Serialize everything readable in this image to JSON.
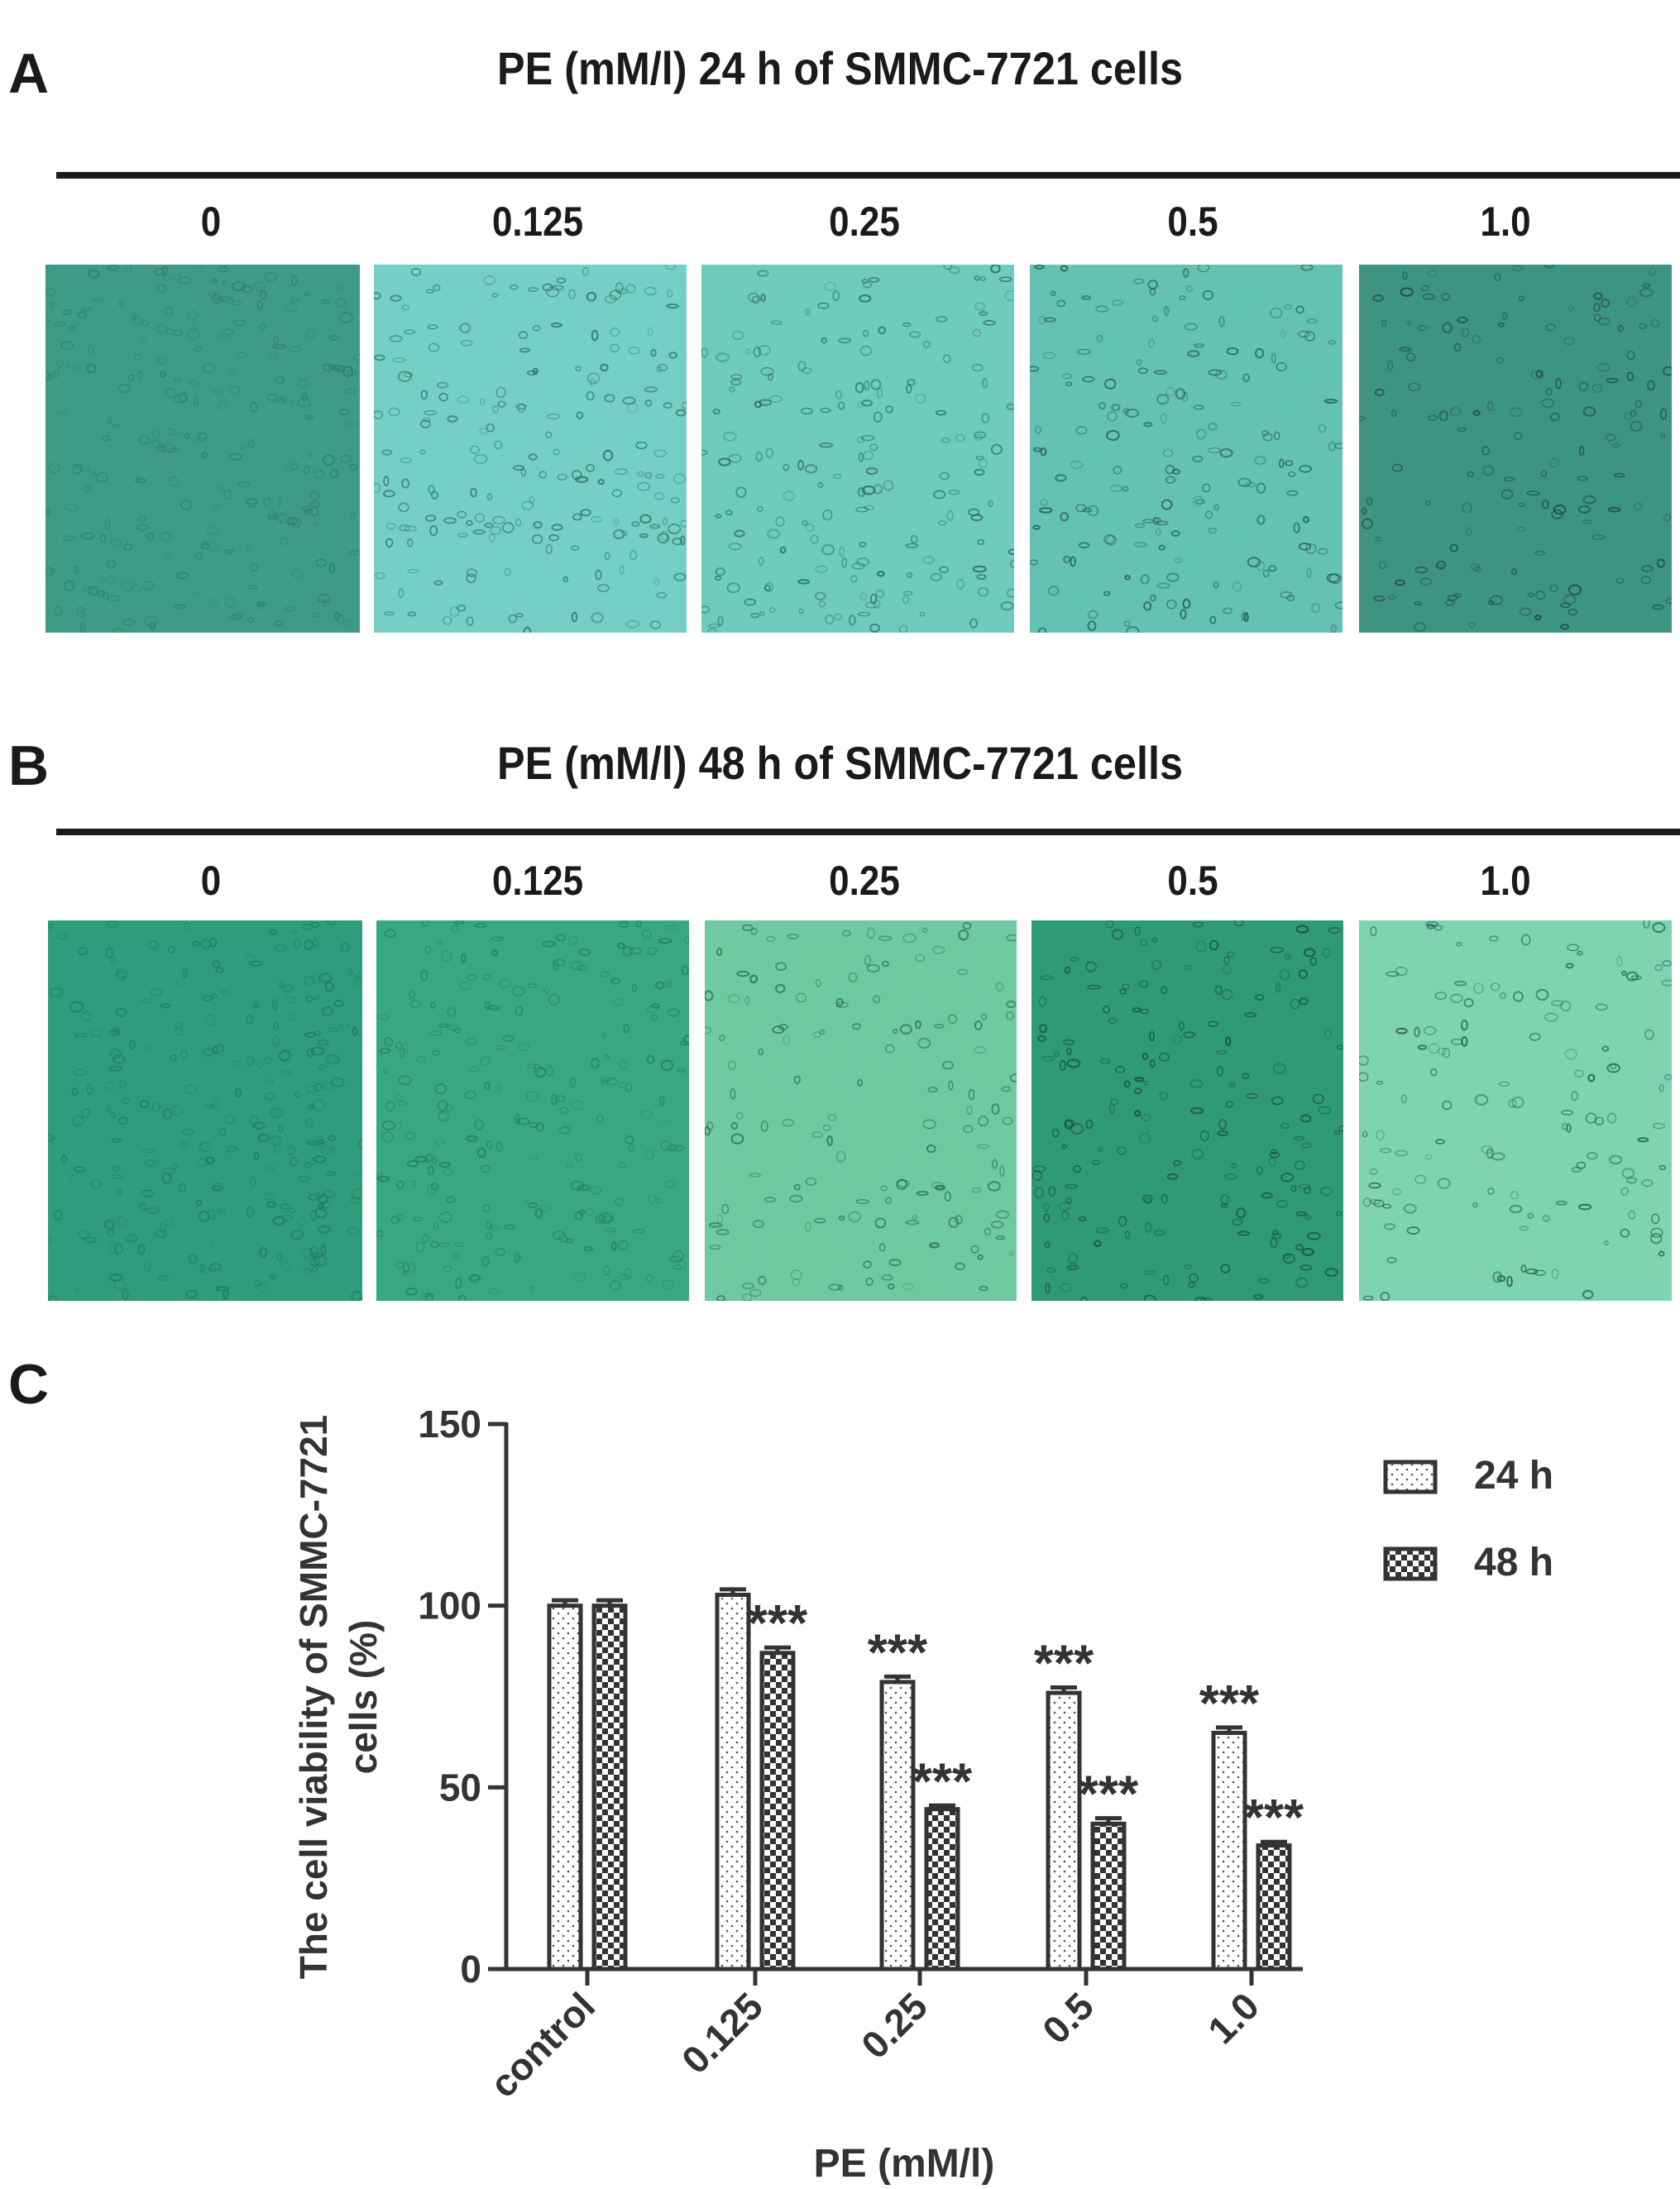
{
  "panels": {
    "A": {
      "letter": "A",
      "title": "PE (mM/l) 24 h of SMMC-7721 cells",
      "doses": [
        "0",
        "0.125",
        "0.25",
        "0.5",
        "1.0"
      ]
    },
    "B": {
      "letter": "B",
      "title": "PE (mM/l) 48 h of SMMC-7721 cells",
      "doses": [
        "0",
        "0.125",
        "0.25",
        "0.5",
        "1.0"
      ]
    },
    "C": {
      "letter": "C"
    }
  },
  "images": {
    "A": [
      {
        "bg": "#3f9a87",
        "cell": "#2f7f6f",
        "density": 0.95
      },
      {
        "bg": "#76cfc4",
        "cell": "#2c6f62",
        "density": 0.75
      },
      {
        "bg": "#6fcbbd",
        "cell": "#2a6a5d",
        "density": 0.7
      },
      {
        "bg": "#63c2b2",
        "cell": "#24594d",
        "density": 0.65
      },
      {
        "bg": "#3e9482",
        "cell": "#1d4a3f",
        "density": 0.55
      }
    ],
    "B": [
      {
        "bg": "#2f9c7b",
        "cell": "#1f7b5f",
        "density": 0.95
      },
      {
        "bg": "#3aa784",
        "cell": "#22805f",
        "density": 0.9
      },
      {
        "bg": "#6fc9a2",
        "cell": "#2a6e53",
        "density": 0.55
      },
      {
        "bg": "#2f9a74",
        "cell": "#174c38",
        "density": 0.7
      },
      {
        "bg": "#7ed3b1",
        "cell": "#235e48",
        "density": 0.5
      }
    ]
  },
  "chart_data": {
    "type": "bar",
    "ylabel": [
      "The cell viability of SMMC-7721",
      "cells (%)"
    ],
    "xlabel": "PE (mM/l)",
    "categories": [
      "control",
      "0.125",
      "0.25",
      "0.5",
      "1.0"
    ],
    "ylim": [
      0,
      150
    ],
    "yticks": [
      0,
      50,
      100,
      150
    ],
    "series": [
      {
        "name": "24 h",
        "pattern": "dots",
        "values": [
          100,
          103,
          79,
          76,
          65
        ],
        "errors": [
          1.5,
          1.5,
          1.5,
          1.5,
          1.5
        ],
        "annotations": [
          "",
          "",
          "***",
          "***",
          "***"
        ]
      },
      {
        "name": "48 h",
        "pattern": "checker",
        "values": [
          100,
          87,
          44,
          40,
          34
        ],
        "errors": [
          1.5,
          1.5,
          1,
          1.5,
          1
        ],
        "annotations": [
          "",
          "***",
          "***",
          "***",
          "***"
        ]
      }
    ],
    "legend_position": "top-right",
    "grid": false
  }
}
